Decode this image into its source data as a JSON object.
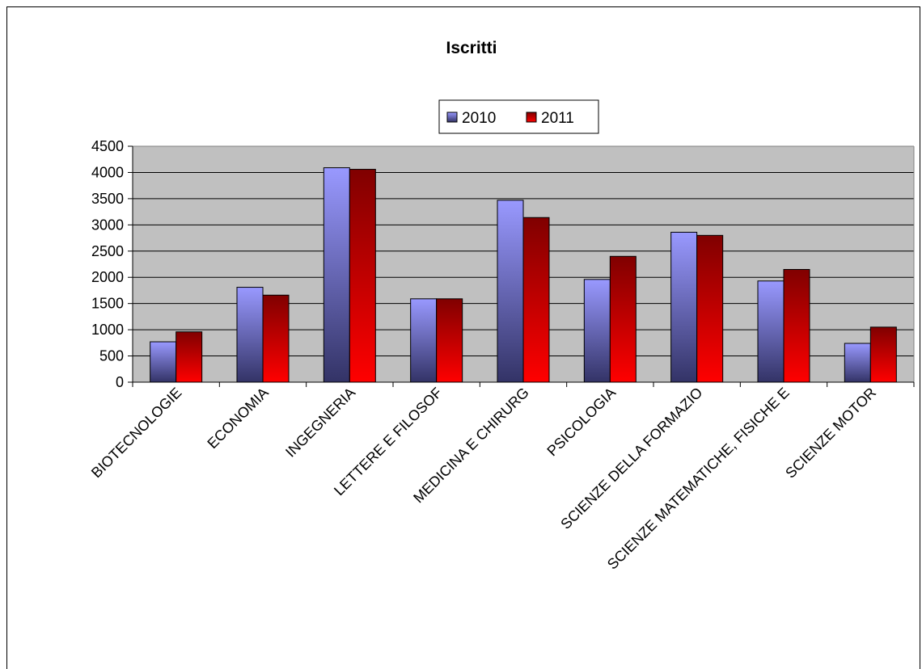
{
  "chart_data": {
    "type": "bar",
    "title": "Iscritti",
    "xlabel": "",
    "ylabel": "",
    "ylim": [
      0,
      4500
    ],
    "yticks": [
      "0",
      "500",
      "1000",
      "1500",
      "2000",
      "2500",
      "3000",
      "3500",
      "4000",
      "4500"
    ],
    "grid": true,
    "legend_position": "top-center",
    "categories": [
      "BIOTECNOLOGIE",
      "ECONOMIA",
      "INGEGNERIA",
      "LETTERE E FILOSOFIA",
      "MEDICINA E CHIRURGIA",
      "PSICOLOGIA",
      "SCIENZE DELLA FORMAZIONE",
      "SCIENZE MATEMATICHE, FISICHE E NATURALI",
      "SCIENZE MOTORIE"
    ],
    "category_labels_visible": [
      "BIOTECNOLOGIE",
      "ECONOMIA",
      "INGEGNERIA",
      "LETTERE E FILOSOF",
      "MEDICINA E CHIRURG",
      "PSICOLOGIA",
      "SCIENZE DELLA FORMAZIO",
      "SCIENZE MATEMATICHE, FISICHE E",
      "SCIENZE MOTOR"
    ],
    "series": [
      {
        "name": "2010",
        "values": [
          770,
          1810,
          4090,
          1590,
          3470,
          1960,
          2860,
          1930,
          740
        ]
      },
      {
        "name": "2011",
        "values": [
          960,
          1660,
          4060,
          1590,
          3140,
          2400,
          2800,
          2150,
          1050
        ]
      }
    ],
    "colors": {
      "series_2010_top": "#9999ff",
      "series_2010_bottom": "#333366",
      "series_2011_top": "#800000",
      "series_2011_bottom": "#ff0000",
      "plot_background": "#c0c0c0",
      "gridline": "#000000"
    }
  }
}
